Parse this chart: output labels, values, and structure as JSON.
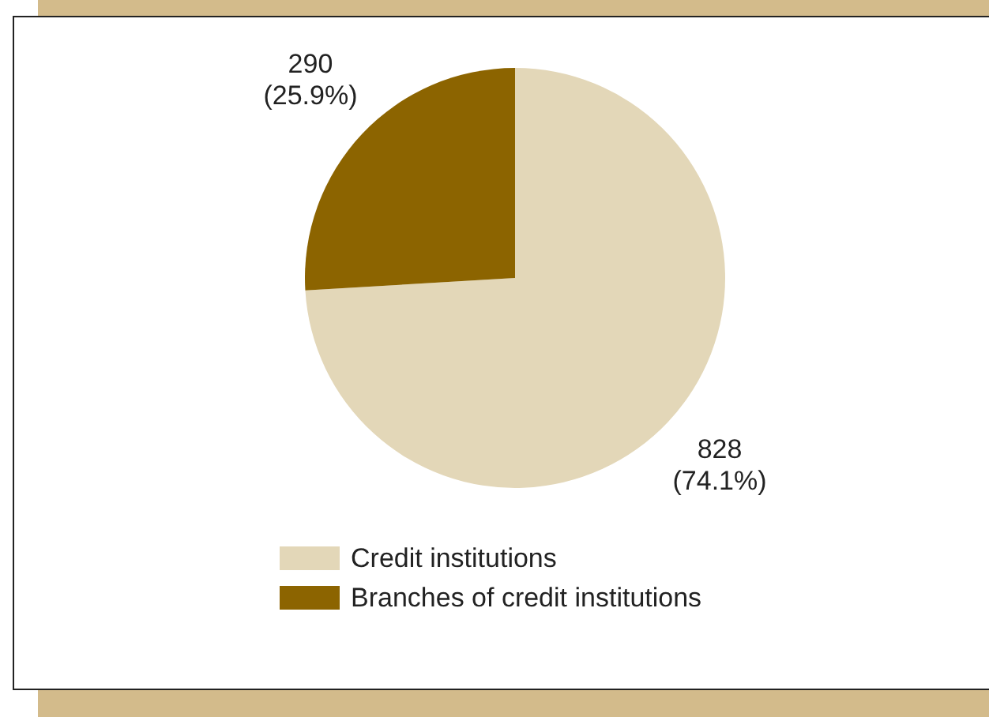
{
  "chart_data": {
    "type": "pie",
    "categories": [
      "Credit institutions",
      "Branches of credit institutions"
    ],
    "values": [
      828,
      290
    ],
    "colors": [
      "#e3d7b8",
      "#8c6400"
    ],
    "value_labels": [
      "828 (74.1%)",
      "290 (25.9%)"
    ],
    "legend": "bottom"
  }
}
